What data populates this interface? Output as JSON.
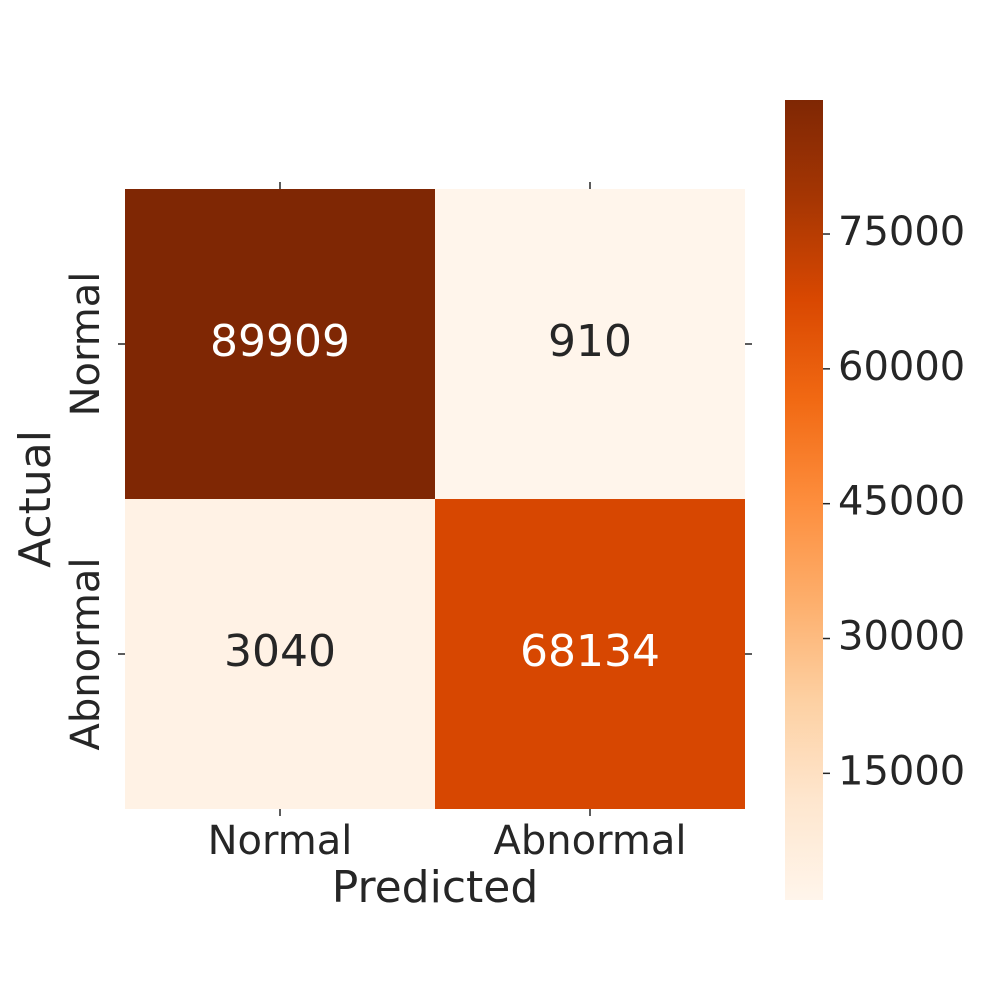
{
  "chart_data": {
    "type": "heatmap",
    "x_label": "Predicted",
    "y_label": "Actual",
    "x_categories": [
      "Normal",
      "Abnormal"
    ],
    "y_categories": [
      "Normal",
      "Abnormal"
    ],
    "values": [
      [
        89909,
        910
      ],
      [
        3040,
        68134
      ]
    ],
    "colorbar_lim": [
      910,
      89909
    ],
    "colorbar_ticks": [
      15000,
      30000,
      45000,
      60000,
      75000
    ],
    "colormap": [
      "#fff5eb",
      "#fee6ce",
      "#fdd0a2",
      "#fdae6b",
      "#fd8d3c",
      "#f16913",
      "#d94801",
      "#a63603",
      "#7f2704"
    ]
  }
}
